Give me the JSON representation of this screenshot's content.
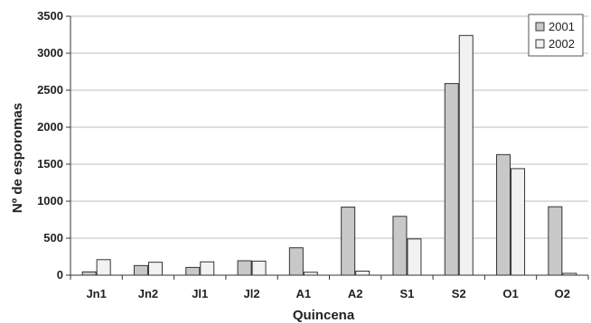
{
  "chart_data": {
    "type": "bar",
    "categories": [
      "Jn1",
      "Jn2",
      "Jl1",
      "Jl2",
      "A1",
      "A2",
      "S1",
      "S2",
      "O1",
      "O2"
    ],
    "series": [
      {
        "name": "2001",
        "values": [
          45,
          130,
          105,
          195,
          370,
          920,
          795,
          2590,
          1630,
          925
        ],
        "color": "#c8c8c8"
      },
      {
        "name": "2002",
        "values": [
          210,
          175,
          180,
          190,
          40,
          55,
          490,
          3240,
          1440,
          25
        ],
        "color": "#f2f2f2"
      }
    ],
    "xlabel": "Quincena",
    "ylabel": "Nº de esporomas",
    "ylim": [
      0,
      3500
    ],
    "yticks": [
      0,
      500,
      1000,
      1500,
      2000,
      2500,
      3000,
      3500
    ],
    "grid": true,
    "legend": "top-right"
  }
}
